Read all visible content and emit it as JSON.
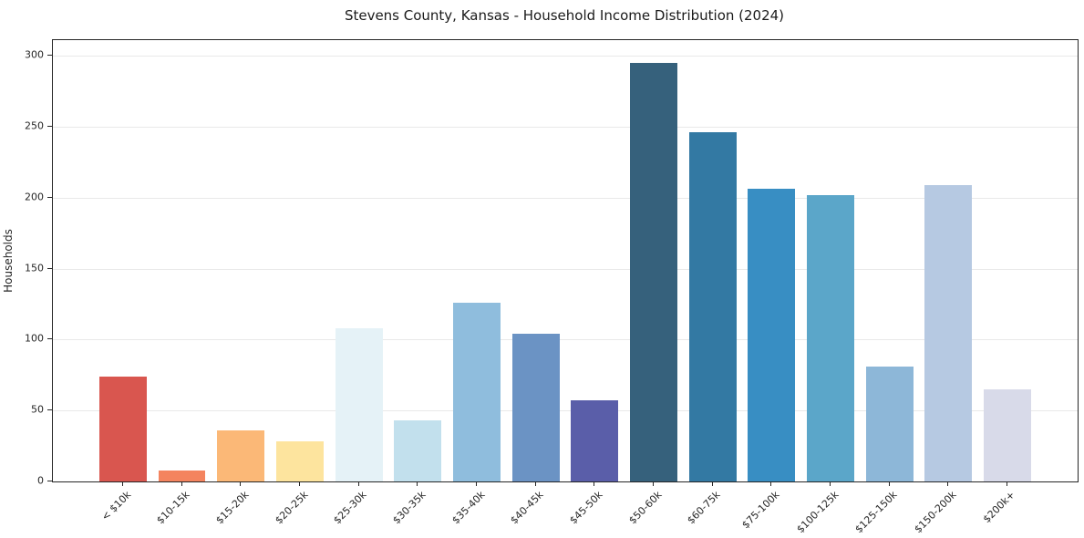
{
  "chart_data": {
    "type": "bar",
    "title": "Stevens County, Kansas - Household Income Distribution (2024)",
    "xlabel": "",
    "ylabel": "Households",
    "categories": [
      "< $10k",
      "$10-15k",
      "$15-20k",
      "$20-25k",
      "$25-30k",
      "$30-35k",
      "$35-40k",
      "$40-45k",
      "$45-50k",
      "$50-60k",
      "$60-75k",
      "$75-100k",
      "$100-125k",
      "$125-150k",
      "$150-200k",
      "$200k+"
    ],
    "values": [
      74,
      8,
      36,
      28,
      108,
      43,
      126,
      104,
      57,
      295,
      246,
      206,
      202,
      81,
      209,
      65
    ],
    "bar_colors": [
      "#d9564f",
      "#f4845f",
      "#fbb877",
      "#fde49e",
      "#e5f2f7",
      "#c2e0ed",
      "#8fbddd",
      "#6b93c4",
      "#5a5ea9",
      "#36617c",
      "#3379a3",
      "#388ec3",
      "#5ba6c9",
      "#8db7d8",
      "#b6c9e2",
      "#d8dae9"
    ],
    "yticks": [
      0,
      50,
      100,
      150,
      200,
      250,
      300
    ],
    "ylim": [
      0,
      311
    ],
    "grid": "horizontal",
    "legend": "none",
    "background_color": "#ffffff",
    "grid_color": "#e9e9e9",
    "axis_color": "#262626",
    "bar_rel_width": 0.8
  }
}
